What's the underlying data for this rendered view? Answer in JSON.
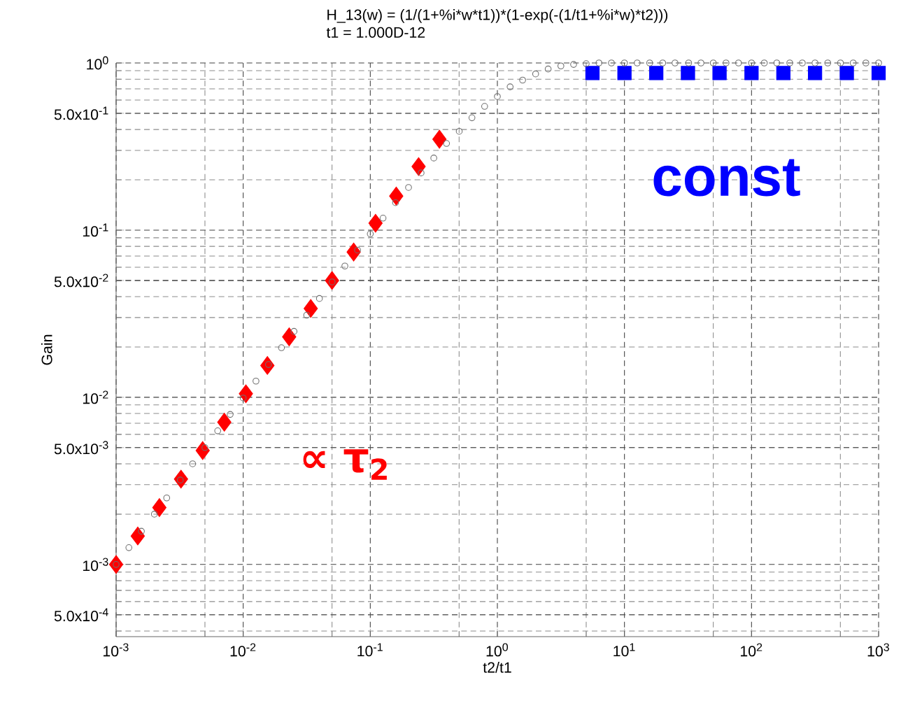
{
  "chart_data": {
    "type": "scatter",
    "title": "H_13(w)  =  (1/(1+%i*w*t1))*(1-exp(-(1/t1+%i*w)*t2)))",
    "subtitle": "t1         =  1.000D-12",
    "xlabel": "t2/t1",
    "ylabel": "Gain",
    "log": "xy",
    "grid": true,
    "xlim": [
      0.001,
      1000
    ],
    "ylim": [
      0.00037,
      1
    ],
    "xticks": [
      {
        "value": 0.001,
        "label": "10$^{-3}$"
      },
      {
        "value": 0.01,
        "label": "10$^{-2}$"
      },
      {
        "value": 0.1,
        "label": "10$^{-1}$"
      },
      {
        "value": 1,
        "label": "10$^{0}$"
      },
      {
        "value": 10,
        "label": "10$^{1}$"
      },
      {
        "value": 100,
        "label": "10$^{2}$"
      },
      {
        "value": 1000,
        "label": "10$^{3}$"
      }
    ],
    "yticks": [
      {
        "value": 0.0005,
        "label": "5.0x10$^{-4}$"
      },
      {
        "value": 0.001,
        "label": "10$^{-3}$"
      },
      {
        "value": 0.005,
        "label": "5.0x10$^{-3}$"
      },
      {
        "value": 0.01,
        "label": "10$^{-2}$"
      },
      {
        "value": 0.05,
        "label": "5.0x10$^{-2}$"
      },
      {
        "value": 0.1,
        "label": "10$^{-1}$"
      },
      {
        "value": 0.5,
        "label": "5.0x10$^{-1}$"
      },
      {
        "value": 1,
        "label": "10$^{0}$"
      }
    ],
    "series": [
      {
        "marker": "circle",
        "color": "#707070",
        "x": [
          0.001,
          0.00126,
          0.00158,
          0.002,
          0.0025,
          0.0032,
          0.004,
          0.005,
          0.0063,
          0.0079,
          0.01,
          0.0126,
          0.0158,
          0.02,
          0.0251,
          0.0316,
          0.0398,
          0.0501,
          0.0631,
          0.0794,
          0.1,
          0.126,
          0.158,
          0.2,
          0.251,
          0.316,
          0.398,
          0.501,
          0.631,
          0.794,
          1,
          1.26,
          1.58,
          2,
          2.51,
          3.16,
          3.98,
          5,
          6.3,
          7.9,
          10,
          12.6,
          15.8,
          20,
          25,
          32,
          40,
          50,
          63,
          79,
          100,
          126,
          158,
          200,
          251,
          316,
          398,
          501,
          631,
          794,
          1000
        ],
        "values": [
          0.001,
          0.00126,
          0.00158,
          0.002,
          0.0025,
          0.0032,
          0.004,
          0.005,
          0.0063,
          0.0079,
          0.0099,
          0.0125,
          0.0157,
          0.0198,
          0.0248,
          0.031,
          0.039,
          0.049,
          0.061,
          0.076,
          0.095,
          0.118,
          0.146,
          0.18,
          0.22,
          0.27,
          0.33,
          0.39,
          0.47,
          0.55,
          0.63,
          0.72,
          0.79,
          0.86,
          0.92,
          0.96,
          0.98,
          0.99,
          1,
          1,
          1,
          1,
          1,
          1,
          1,
          1,
          1,
          1,
          1,
          1,
          1,
          1,
          1,
          1,
          1,
          1,
          1,
          1,
          1,
          1,
          1
        ]
      },
      {
        "marker": "diamond",
        "color": "#ff0000",
        "x": [
          0.001,
          0.00148,
          0.00219,
          0.00324,
          0.0048,
          0.0071,
          0.0105,
          0.0155,
          0.023,
          0.034,
          0.05,
          0.074,
          0.11,
          0.16,
          0.24,
          0.35
        ],
        "values": [
          0.001,
          0.00148,
          0.00219,
          0.00324,
          0.0048,
          0.0071,
          0.0105,
          0.0155,
          0.023,
          0.034,
          0.05,
          0.074,
          0.11,
          0.16,
          0.24,
          0.35
        ]
      },
      {
        "marker": "square",
        "color": "#0000ff",
        "x": [
          5.6,
          10,
          17.8,
          31.6,
          56,
          100,
          178,
          316,
          562,
          1000
        ],
        "values": [
          0.87,
          0.87,
          0.87,
          0.87,
          0.87,
          0.87,
          0.87,
          0.87,
          0.87,
          0.87
        ]
      }
    ],
    "annotations": [
      "const",
      "∝ τ$_{2}$"
    ]
  }
}
